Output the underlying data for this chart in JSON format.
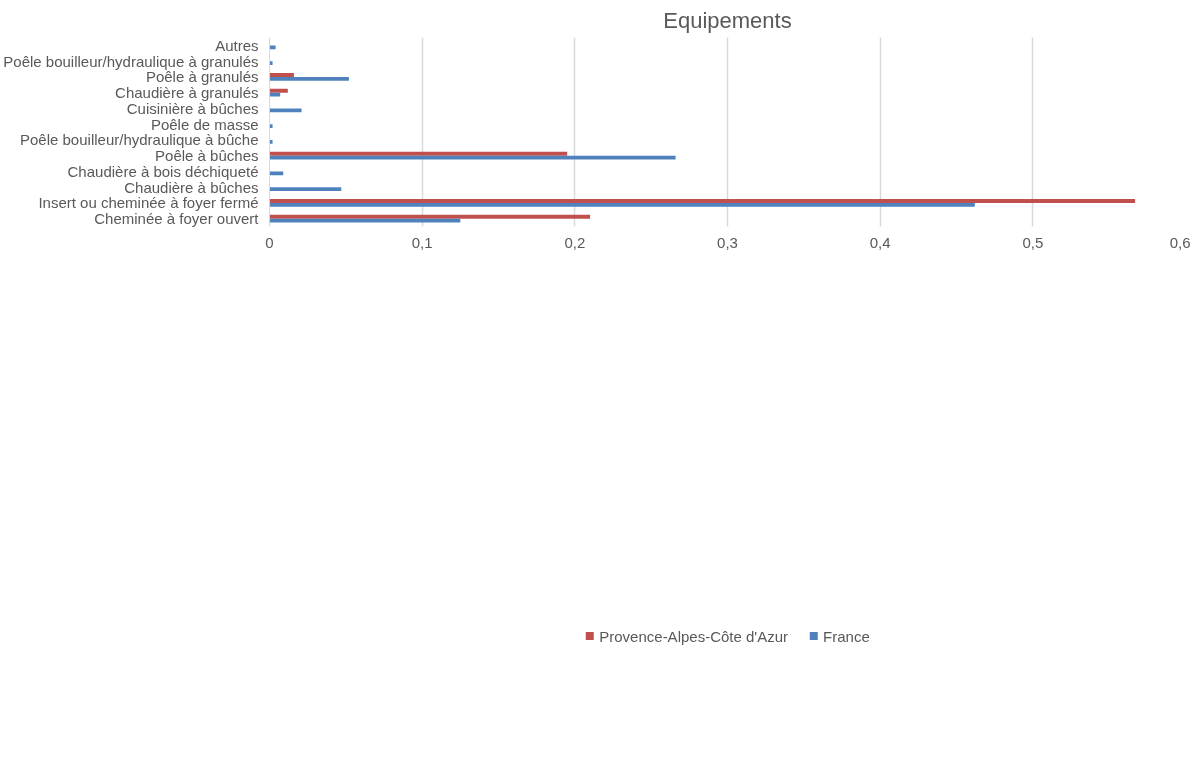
{
  "chart_data": {
    "type": "bar",
    "orientation": "horizontal",
    "title": "Equipements",
    "categories": [
      "Autres",
      "Poêle bouilleur/hydraulique à granulés",
      "Poêle à granulés",
      "Chaudière à granulés",
      "Cuisinière à bûches",
      "Poêle de masse",
      "Poêle bouilleur/hydraulique à bûche",
      "Poêle à bûches",
      "Chaudière à bois déchiqueté",
      "Chaudière à bûches",
      "Insert ou cheminée à foyer fermé",
      "Cheminée à foyer ouvert"
    ],
    "series": [
      {
        "name": "Provence-Alpes-Côte d'Azur",
        "color": "#c0504d",
        "values": [
          null,
          null,
          0.016,
          0.012,
          null,
          null,
          null,
          0.195,
          null,
          null,
          0.567,
          0.21
        ]
      },
      {
        "name": "France",
        "color": "#4f81bd",
        "values": [
          0.004,
          0.002,
          0.052,
          0.007,
          0.021,
          0.002,
          0.002,
          0.266,
          0.009,
          0.047,
          0.462,
          0.125
        ]
      }
    ],
    "xlim": [
      0,
      0.6
    ],
    "xticks": [
      {
        "value": 0,
        "label": "0"
      },
      {
        "value": 0.1,
        "label": "0,1"
      },
      {
        "value": 0.2,
        "label": "0,2"
      },
      {
        "value": 0.3,
        "label": "0,3"
      },
      {
        "value": 0.4,
        "label": "0,4"
      },
      {
        "value": 0.5,
        "label": "0,5"
      },
      {
        "value": 0.6,
        "label": "0,6"
      }
    ],
    "grid": "x",
    "legend": "bottom"
  }
}
